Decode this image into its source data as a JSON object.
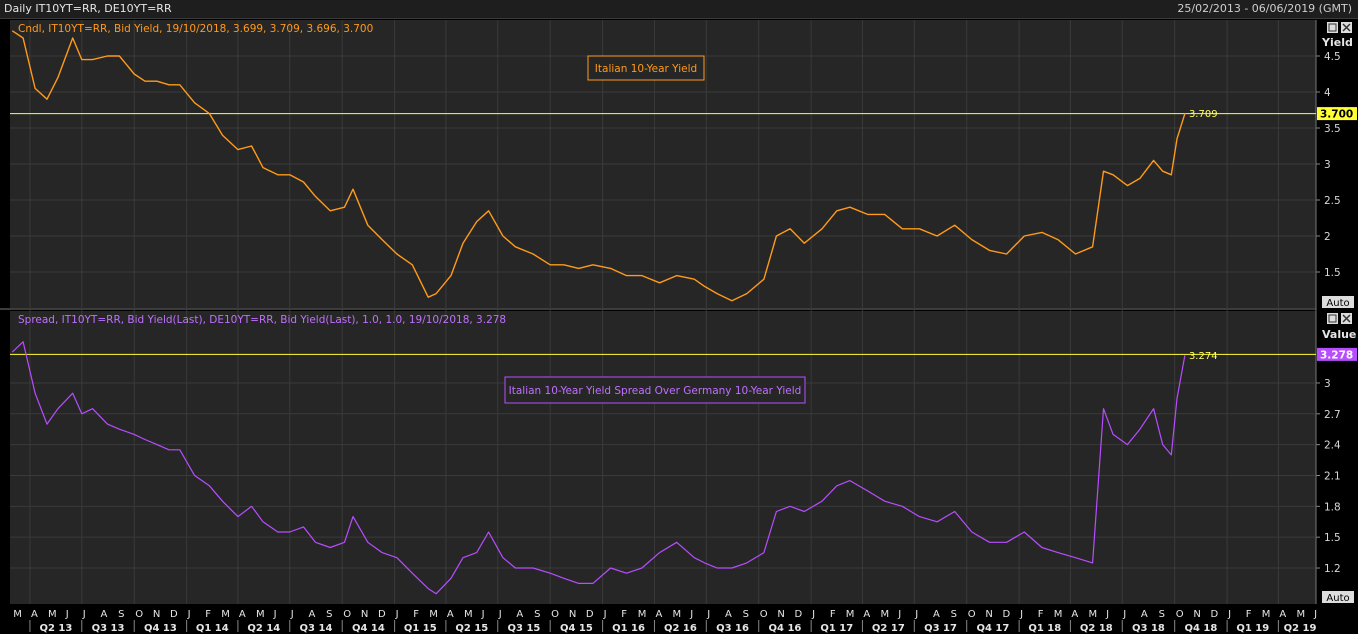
{
  "header": {
    "title": "Daily IT10YT=RR, DE10YT=RR",
    "date_range": "25/02/2013 - 06/06/2019 (GMT)"
  },
  "panels": {
    "top": {
      "legend": "Cndl, IT10YT=RR, Bid Yield, 19/10/2018, 3.699, 3.709, 3.696, 3.700",
      "annotation": "Italian 10-Year Yield",
      "axis_title": "Yield",
      "last_value_badge": "3.700",
      "last_point_label": "3.709",
      "auto_button": "Auto"
    },
    "bottom": {
      "legend": "Spread, IT10YT=RR, Bid Yield(Last), DE10YT=RR, Bid Yield(Last),  1.0, 1.0, 19/10/2018, 3.278",
      "annotation": "Italian 10-Year Yield Spread Over Germany 10-Year Yield",
      "axis_title": "Value",
      "last_value_badge": "3.278",
      "last_point_label": "3.274",
      "auto_button": "Auto"
    }
  },
  "colors": {
    "background": "#000000",
    "panel_bg": "#262626",
    "grid": "#3a3a3a",
    "yield_series": "#ff9a1a",
    "spread_series": "#b84dff",
    "last_value_line": "#ffff33"
  },
  "chart_data": [
    {
      "type": "line",
      "series_style": "candlestick",
      "x_unit": "date",
      "x_range": [
        "2013-02-25",
        "2019-06-06"
      ],
      "ylim": [
        1.0,
        5.0
      ],
      "yticks": [
        1.5,
        2,
        2.5,
        3,
        3.5,
        4,
        4.5
      ],
      "last_value": 3.7,
      "last_point": {
        "x": "2018-10-19",
        "y": 3.709
      },
      "series": [
        {
          "x": [
            "2013-03-01",
            "2013-03-20",
            "2013-04-10",
            "2013-05-01",
            "2013-05-20",
            "2013-06-15",
            "2013-07-01",
            "2013-07-20",
            "2013-08-15",
            "2013-09-05",
            "2013-10-01",
            "2013-10-20",
            "2013-11-10",
            "2013-12-01",
            "2013-12-20",
            "2014-01-15",
            "2014-02-10",
            "2014-03-05",
            "2014-04-01",
            "2014-04-25",
            "2014-05-15",
            "2014-06-10",
            "2014-07-01",
            "2014-07-25",
            "2014-08-15",
            "2014-09-10",
            "2014-10-05",
            "2014-10-20",
            "2014-11-15",
            "2014-12-10",
            "2015-01-05",
            "2015-02-01",
            "2015-03-01",
            "2015-03-15",
            "2015-04-10",
            "2015-05-01",
            "2015-05-25",
            "2015-06-15",
            "2015-07-10",
            "2015-08-01",
            "2015-09-01",
            "2015-10-01",
            "2015-10-25",
            "2015-11-20",
            "2015-12-15",
            "2016-01-15",
            "2016-02-12",
            "2016-03-10",
            "2016-04-10",
            "2016-05-10",
            "2016-06-10",
            "2016-06-28",
            "2016-07-20",
            "2016-08-15",
            "2016-09-10",
            "2016-10-10",
            "2016-11-01",
            "2016-11-25",
            "2016-12-20",
            "2017-01-20",
            "2017-02-15",
            "2017-03-10",
            "2017-04-10",
            "2017-05-10",
            "2017-06-10",
            "2017-07-10",
            "2017-08-10",
            "2017-09-10",
            "2017-10-10",
            "2017-11-10",
            "2017-12-10",
            "2018-01-10",
            "2018-02-10",
            "2018-03-10",
            "2018-04-10",
            "2018-05-10",
            "2018-05-29",
            "2018-06-15",
            "2018-07-10",
            "2018-08-01",
            "2018-08-25",
            "2018-09-10",
            "2018-09-25",
            "2018-10-05",
            "2018-10-19"
          ],
          "y": [
            4.85,
            4.75,
            4.05,
            3.9,
            4.2,
            4.75,
            4.45,
            4.45,
            4.5,
            4.5,
            4.25,
            4.15,
            4.15,
            4.1,
            4.1,
            3.85,
            3.7,
            3.4,
            3.2,
            3.25,
            2.95,
            2.85,
            2.85,
            2.75,
            2.55,
            2.35,
            2.4,
            2.65,
            2.15,
            1.95,
            1.75,
            1.6,
            1.15,
            1.2,
            1.45,
            1.9,
            2.2,
            2.35,
            2.0,
            1.85,
            1.75,
            1.6,
            1.6,
            1.55,
            1.6,
            1.55,
            1.45,
            1.45,
            1.35,
            1.45,
            1.4,
            1.3,
            1.2,
            1.1,
            1.2,
            1.4,
            2.0,
            2.1,
            1.9,
            2.1,
            2.35,
            2.4,
            2.3,
            2.3,
            2.1,
            2.1,
            2.0,
            2.15,
            1.95,
            1.8,
            1.75,
            2.0,
            2.05,
            1.95,
            1.75,
            1.85,
            2.9,
            2.85,
            2.7,
            2.8,
            3.05,
            2.9,
            2.85,
            3.35,
            3.7
          ]
        }
      ]
    },
    {
      "type": "line",
      "x_unit": "date",
      "x_range": [
        "2013-02-25",
        "2019-06-06"
      ],
      "ylim": [
        0.85,
        3.7
      ],
      "yticks": [
        1.2,
        1.5,
        1.8,
        2.1,
        2.4,
        2.7,
        3
      ],
      "last_value": 3.278,
      "last_point": {
        "x": "2018-10-19",
        "y": 3.274
      },
      "series": [
        {
          "x": [
            "2013-03-01",
            "2013-03-20",
            "2013-04-10",
            "2013-05-01",
            "2013-05-20",
            "2013-06-15",
            "2013-07-01",
            "2013-07-20",
            "2013-08-15",
            "2013-09-05",
            "2013-10-01",
            "2013-10-20",
            "2013-11-10",
            "2013-12-01",
            "2013-12-20",
            "2014-01-15",
            "2014-02-10",
            "2014-03-05",
            "2014-04-01",
            "2014-04-25",
            "2014-05-15",
            "2014-06-10",
            "2014-07-01",
            "2014-07-25",
            "2014-08-15",
            "2014-09-10",
            "2014-10-05",
            "2014-10-20",
            "2014-11-15",
            "2014-12-10",
            "2015-01-05",
            "2015-02-01",
            "2015-03-01",
            "2015-03-15",
            "2015-04-10",
            "2015-05-01",
            "2015-05-25",
            "2015-06-15",
            "2015-07-10",
            "2015-08-01",
            "2015-09-01",
            "2015-10-01",
            "2015-10-25",
            "2015-11-20",
            "2015-12-15",
            "2016-01-15",
            "2016-02-12",
            "2016-03-10",
            "2016-04-10",
            "2016-05-10",
            "2016-06-10",
            "2016-06-28",
            "2016-07-20",
            "2016-08-15",
            "2016-09-10",
            "2016-10-10",
            "2016-11-01",
            "2016-11-25",
            "2016-12-20",
            "2017-01-20",
            "2017-02-15",
            "2017-03-10",
            "2017-04-10",
            "2017-05-10",
            "2017-06-10",
            "2017-07-10",
            "2017-08-10",
            "2017-09-10",
            "2017-10-10",
            "2017-11-10",
            "2017-12-10",
            "2018-01-10",
            "2018-02-10",
            "2018-03-10",
            "2018-04-10",
            "2018-05-10",
            "2018-05-29",
            "2018-06-15",
            "2018-07-10",
            "2018-08-01",
            "2018-08-25",
            "2018-09-10",
            "2018-09-25",
            "2018-10-05",
            "2018-10-19"
          ],
          "y": [
            3.3,
            3.4,
            2.9,
            2.6,
            2.75,
            2.9,
            2.7,
            2.75,
            2.6,
            2.55,
            2.5,
            2.45,
            2.4,
            2.35,
            2.35,
            2.1,
            2.0,
            1.85,
            1.7,
            1.8,
            1.65,
            1.55,
            1.55,
            1.6,
            1.45,
            1.4,
            1.45,
            1.7,
            1.45,
            1.35,
            1.3,
            1.15,
            1.0,
            0.95,
            1.1,
            1.3,
            1.35,
            1.55,
            1.3,
            1.2,
            1.2,
            1.15,
            1.1,
            1.05,
            1.05,
            1.2,
            1.15,
            1.2,
            1.35,
            1.45,
            1.3,
            1.25,
            1.2,
            1.2,
            1.25,
            1.35,
            1.75,
            1.8,
            1.75,
            1.85,
            2.0,
            2.05,
            1.95,
            1.85,
            1.8,
            1.7,
            1.65,
            1.75,
            1.55,
            1.45,
            1.45,
            1.55,
            1.4,
            1.35,
            1.3,
            1.25,
            2.75,
            2.5,
            2.4,
            2.55,
            2.75,
            2.4,
            2.3,
            2.85,
            3.27
          ]
        }
      ]
    }
  ],
  "x_axis": {
    "months": [
      "M",
      "A",
      "M",
      "J",
      "J",
      "A",
      "S",
      "O",
      "N",
      "D",
      "J",
      "F",
      "M",
      "A",
      "M",
      "J",
      "J",
      "A",
      "S",
      "O",
      "N",
      "D",
      "J",
      "F",
      "M",
      "A",
      "M",
      "J",
      "J",
      "A",
      "S",
      "O",
      "N",
      "D",
      "J",
      "F",
      "M",
      "A",
      "M",
      "J",
      "J",
      "A",
      "S",
      "O",
      "N",
      "D",
      "J",
      "F",
      "M",
      "A",
      "M",
      "J",
      "J",
      "A",
      "S",
      "O",
      "N",
      "D",
      "J",
      "F",
      "M",
      "A",
      "M",
      "J",
      "J",
      "A",
      "S",
      "O",
      "N",
      "D",
      "J",
      "F",
      "M",
      "A",
      "M",
      "J"
    ],
    "quarters": [
      "Q2 13",
      "Q3 13",
      "Q4 13",
      "Q1 14",
      "Q2 14",
      "Q3 14",
      "Q4 14",
      "Q1 15",
      "Q2 15",
      "Q3 15",
      "Q4 15",
      "Q1 16",
      "Q2 16",
      "Q3 16",
      "Q4 16",
      "Q1 17",
      "Q2 17",
      "Q3 17",
      "Q4 17",
      "Q1 18",
      "Q2 18",
      "Q3 18",
      "Q4 18",
      "Q1 19",
      "Q2 19"
    ]
  }
}
